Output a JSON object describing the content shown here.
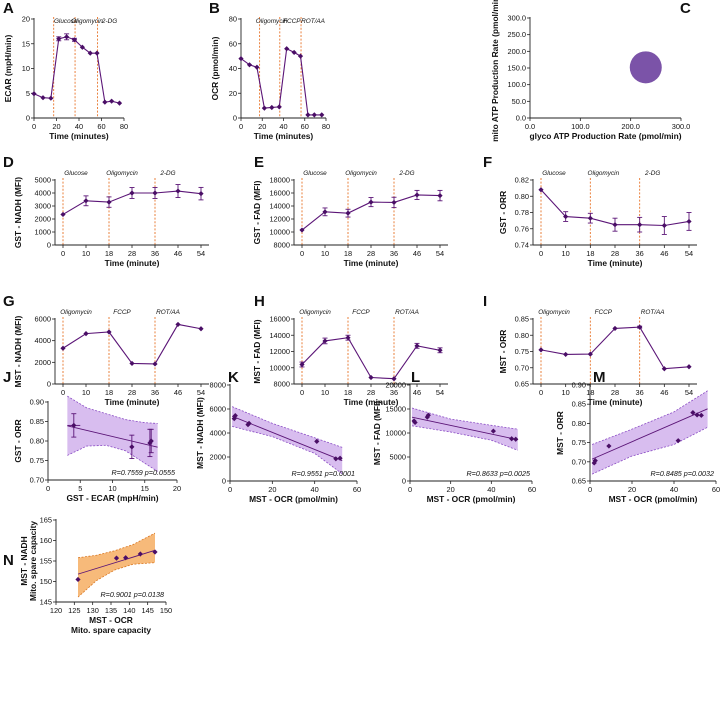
{
  "colors": {
    "line": "#5b1577",
    "marker": "#4a0e66",
    "inject": "#e8742a",
    "band": "#cba7ea",
    "band_edge": "#8a4cc4",
    "bubble": "#7b53a8",
    "orange_band": "#f6b26b",
    "orange_edge": "#d9751f",
    "axis": "#222222"
  },
  "chart_data": [
    {
      "id": "A",
      "type": "line",
      "xlabel": "Time (minutes)",
      "ylabel": "ECAR (mpH/min)",
      "xlim": [
        0,
        80
      ],
      "xticks": [
        0,
        20,
        40,
        60,
        80
      ],
      "ylim": [
        0,
        20
      ],
      "yticks": [
        0,
        5,
        10,
        15,
        20
      ],
      "x": [
        0,
        8,
        15,
        22,
        29,
        36,
        43,
        50,
        56,
        63,
        69,
        76
      ],
      "y": [
        4.9,
        4.1,
        4.0,
        16.0,
        16.4,
        15.8,
        14.3,
        13.1,
        13.1,
        3.2,
        3.4,
        3.0
      ],
      "err": [
        0,
        0,
        0,
        0.4,
        0.6,
        0.3,
        0,
        0,
        0,
        0,
        0,
        0
      ],
      "injections": [
        {
          "x": 17.5,
          "label": "Glucose"
        },
        {
          "x": 36.5,
          "label": "Oligomycin"
        },
        {
          "x": 56.5,
          "label": "2-DG"
        }
      ]
    },
    {
      "id": "B",
      "type": "line",
      "xlabel": "Time (minutes)",
      "ylabel": "OCR (pmol/min)",
      "xlim": [
        0,
        80
      ],
      "xticks": [
        0,
        20,
        40,
        60,
        80
      ],
      "ylim": [
        0,
        80
      ],
      "yticks": [
        0,
        20,
        40,
        60,
        80
      ],
      "x": [
        0,
        8,
        15,
        22,
        29,
        36,
        43,
        50,
        56,
        63,
        69,
        76
      ],
      "y": [
        48,
        43,
        41,
        8,
        8.5,
        9,
        56,
        53,
        50,
        2.5,
        2.5,
        2.5
      ],
      "err": [
        0,
        0,
        0,
        0,
        0,
        0,
        0,
        0,
        0,
        0,
        0,
        0
      ],
      "injections": [
        {
          "x": 17.5,
          "label": "Oligomycin"
        },
        {
          "x": 36.5,
          "label": "FCCP"
        },
        {
          "x": 56.5,
          "label": "ROT/AA"
        }
      ]
    },
    {
      "id": "C",
      "type": "scatter",
      "xlabel": "glyco ATP Production Rate (pmol/min)",
      "ylabel": "mito ATP Production Rate (pmol/min)",
      "xlim": [
        0,
        300
      ],
      "xticks": [
        "0.0",
        "100.0",
        "200.0",
        "300.0"
      ],
      "ylim": [
        0,
        300
      ],
      "yticks": [
        "0.0",
        "50.0",
        "100.0",
        "150.0",
        "200.0",
        "250.0",
        "300.0"
      ],
      "x": [
        230
      ],
      "y": [
        152
      ]
    },
    {
      "id": "D",
      "type": "line",
      "xlabel": "Time (minute)",
      "ylabel": "GST - NADH (MFI)",
      "xcat": [
        "0",
        "10",
        "18",
        "28",
        "36",
        "46",
        "54"
      ],
      "ylim": [
        0,
        5000
      ],
      "yticks": [
        0,
        1000,
        2000,
        3000,
        4000,
        5000
      ],
      "y": [
        2350,
        3400,
        3300,
        4000,
        4000,
        4150,
        3950
      ],
      "err": [
        0,
        380,
        400,
        420,
        420,
        500,
        480
      ],
      "injections": [
        {
          "at": 0,
          "label": "Glucose"
        },
        {
          "at": 2,
          "label": "Oligomycin"
        },
        {
          "at": 4,
          "label": "2-DG"
        }
      ]
    },
    {
      "id": "E",
      "type": "line",
      "xlabel": "Time (minute)",
      "ylabel": "GST - FAD (MFI)",
      "xcat": [
        "0",
        "10",
        "18",
        "28",
        "36",
        "46",
        "54"
      ],
      "ylim": [
        8000,
        18000
      ],
      "yticks": [
        8000,
        10000,
        12000,
        14000,
        16000,
        18000
      ],
      "y": [
        10300,
        13100,
        12900,
        14600,
        14550,
        15700,
        15600
      ],
      "err": [
        0,
        600,
        600,
        700,
        800,
        700,
        800
      ],
      "injections": [
        {
          "at": 0,
          "label": "Glucose"
        },
        {
          "at": 2,
          "label": "Oligomycin"
        },
        {
          "at": 4,
          "label": "2-DG"
        }
      ]
    },
    {
      "id": "F",
      "type": "line",
      "xlabel": "Time (minute)",
      "ylabel": "GST - ORR",
      "xcat": [
        "0",
        "10",
        "18",
        "28",
        "36",
        "46",
        "54"
      ],
      "ylim": [
        0.74,
        0.82
      ],
      "yticks": [
        "0.74",
        "0.76",
        "0.78",
        "0.80",
        "0.82"
      ],
      "y": [
        0.808,
        0.775,
        0.773,
        0.765,
        0.765,
        0.764,
        0.769
      ],
      "err": [
        0,
        0.006,
        0.006,
        0.008,
        0.009,
        0.011,
        0.011
      ],
      "injections": [
        {
          "at": 0,
          "label": "Glucose"
        },
        {
          "at": 2,
          "label": "Oligomycin"
        },
        {
          "at": 4,
          "label": "2-DG"
        }
      ]
    },
    {
      "id": "G",
      "type": "line",
      "xlabel": "Time (minute)",
      "ylabel": "MST - NADH (MFI)",
      "xcat": [
        "0",
        "10",
        "18",
        "28",
        "36",
        "46",
        "54"
      ],
      "ylim": [
        0,
        6000
      ],
      "yticks": [
        0,
        2000,
        4000,
        6000
      ],
      "y": [
        3300,
        4650,
        4800,
        1900,
        1850,
        5500,
        5100
      ],
      "err": [
        0,
        0,
        0,
        0,
        0,
        0,
        0
      ],
      "injections": [
        {
          "at": 0,
          "label": "Oligomycin"
        },
        {
          "at": 2,
          "label": "FCCP"
        },
        {
          "at": 4,
          "label": "ROT/AA"
        }
      ]
    },
    {
      "id": "H",
      "type": "line",
      "xlabel": "Time (minute)",
      "ylabel": "MST - FAD (MFI)",
      "xcat": [
        "0",
        "10",
        "18",
        "28",
        "36",
        "46",
        "54"
      ],
      "ylim": [
        8000,
        16000
      ],
      "yticks": [
        8000,
        10000,
        12000,
        14000,
        16000
      ],
      "y": [
        10400,
        13300,
        13700,
        8800,
        8650,
        12700,
        12150
      ],
      "err": [
        300,
        350,
        300,
        0,
        0,
        300,
        300
      ],
      "injections": [
        {
          "at": 0,
          "label": "Oligomycin"
        },
        {
          "at": 2,
          "label": "FCCP"
        },
        {
          "at": 4,
          "label": "ROT/AA"
        }
      ]
    },
    {
      "id": "I",
      "type": "line",
      "xlabel": "Time (minute)",
      "ylabel": "MST - ORR",
      "xcat": [
        "0",
        "10",
        "18",
        "28",
        "36",
        "46",
        "54"
      ],
      "ylim": [
        0.65,
        0.85
      ],
      "yticks": [
        "0.65",
        "0.70",
        "0.75",
        "0.80",
        "0.85"
      ],
      "y": [
        0.755,
        0.741,
        0.742,
        0.821,
        0.825,
        0.697,
        0.703
      ],
      "err": [
        0,
        0,
        0,
        0,
        0.003,
        0,
        0
      ],
      "injections": [
        {
          "at": 0,
          "label": "Oligomycin"
        },
        {
          "at": 2,
          "label": "FCCP"
        },
        {
          "at": 4,
          "label": "ROT/AA"
        }
      ]
    },
    {
      "id": "J",
      "type": "scatter",
      "xlabel": "GST - ECAR (mpH/min)",
      "ylabel": "GST - ORR",
      "xlim": [
        0,
        20
      ],
      "xticks": [
        0,
        5,
        10,
        15,
        20
      ],
      "ylim": [
        0.7,
        0.9
      ],
      "yticks": [
        "0.70",
        "0.75",
        "0.80",
        "0.85",
        "0.90"
      ],
      "x": [
        4,
        13,
        15.8,
        16
      ],
      "y": [
        0.84,
        0.785,
        0.795,
        0.8
      ],
      "xerr": [
        1.0,
        0,
        0,
        0
      ],
      "yerr": [
        0.03,
        0.03,
        0.035,
        0.03
      ],
      "fit": {
        "x": [
          3,
          17
        ],
        "y": [
          0.839,
          0.784
        ]
      },
      "band": {
        "x": [
          3,
          6,
          9,
          12,
          15,
          17
        ],
        "upper": [
          0.915,
          0.885,
          0.87,
          0.855,
          0.847,
          0.845
        ],
        "lower": [
          0.763,
          0.787,
          0.789,
          0.775,
          0.743,
          0.722
        ]
      },
      "stat": "R=0.7559 p=0.0555"
    },
    {
      "id": "K",
      "type": "scatter",
      "xlabel": "MST - OCR (pmol/min)",
      "ylabel": "MST - NADH (MFI)",
      "xlim": [
        0,
        60
      ],
      "xticks": [
        0,
        20,
        40,
        60
      ],
      "ylim": [
        0,
        8000
      ],
      "yticks": [
        0,
        2000,
        4000,
        6000,
        8000
      ],
      "x": [
        2,
        2.5,
        8.5,
        9,
        41,
        50,
        52
      ],
      "y": [
        5200,
        5450,
        4700,
        4800,
        3300,
        1850,
        1900
      ],
      "fit": {
        "x": [
          1,
          53
        ],
        "y": [
          5400,
          1700
        ]
      },
      "band": {
        "x": [
          1,
          20,
          40,
          53
        ],
        "upper": [
          6200,
          4800,
          3600,
          2800
        ],
        "lower": [
          4550,
          3700,
          2300,
          600
        ]
      },
      "stat": "R=0.9551 p=0.0001"
    },
    {
      "id": "L",
      "type": "scatter",
      "xlabel": "MST - OCR (pmol/min)",
      "ylabel": "MST - FAD (MFI)",
      "xlim": [
        0,
        60
      ],
      "xticks": [
        0,
        20,
        40,
        60
      ],
      "ylim": [
        0,
        20000
      ],
      "yticks": [
        0,
        5000,
        10000,
        15000,
        20000
      ],
      "x": [
        2,
        2.5,
        8.5,
        9,
        41,
        50,
        52
      ],
      "y": [
        12500,
        12200,
        13300,
        13700,
        10400,
        8800,
        8700
      ],
      "fit": {
        "x": [
          1,
          53
        ],
        "y": [
          13300,
          8600
        ]
      },
      "band": {
        "x": [
          1,
          20,
          40,
          53
        ],
        "upper": [
          15200,
          12900,
          11600,
          10800
        ],
        "lower": [
          11500,
          10200,
          8500,
          6400
        ]
      },
      "stat": "R=0.8633 p=0.0025"
    },
    {
      "id": "M",
      "type": "scatter",
      "xlabel": "MST - OCR (pmol/min)",
      "ylabel": "MST - ORR",
      "xlim": [
        0,
        60
      ],
      "xticks": [
        0,
        20,
        40,
        60
      ],
      "ylim": [
        0.65,
        0.9
      ],
      "yticks": [
        "0.65",
        "0.70",
        "0.75",
        "0.80",
        "0.85",
        "0.90"
      ],
      "x": [
        2,
        2.5,
        9,
        42,
        49,
        51,
        53
      ],
      "y": [
        0.697,
        0.703,
        0.741,
        0.755,
        0.828,
        0.822,
        0.821
      ],
      "fit": {
        "x": [
          1,
          56
        ],
        "y": [
          0.707,
          0.838
        ]
      },
      "band": {
        "x": [
          1,
          20,
          40,
          56
        ],
        "upper": [
          0.745,
          0.785,
          0.83,
          0.885
        ],
        "lower": [
          0.668,
          0.715,
          0.745,
          0.79
        ]
      },
      "stat": "R=0.8485 p=0.0032"
    },
    {
      "id": "N",
      "type": "scatter",
      "xlabel": "MST - OCR",
      "xlabel2": "Mito. spare capacity",
      "ylabel": "MST - NADH",
      "ylabel2": "Mito. spare capacity",
      "xlim": [
        120,
        150
      ],
      "xticks": [
        120,
        125,
        130,
        135,
        140,
        145,
        150
      ],
      "ylim": [
        145,
        165
      ],
      "yticks": [
        145,
        150,
        155,
        160,
        165
      ],
      "x": [
        126,
        136.5,
        139,
        143,
        147
      ],
      "y": [
        150.5,
        155.7,
        155.8,
        156.7,
        157.2
      ],
      "fit": {
        "x": [
          126,
          147
        ],
        "y": [
          151.8,
          157.6
        ]
      },
      "band": {
        "x": [
          126,
          131,
          136,
          141,
          147
        ],
        "upper": [
          155.8,
          156.4,
          157.5,
          159.0,
          161.8
        ],
        "lower": [
          146.2,
          150.2,
          152.8,
          154.2,
          154.6
        ]
      },
      "stat": "R=0.9001 p=0.0138"
    }
  ]
}
